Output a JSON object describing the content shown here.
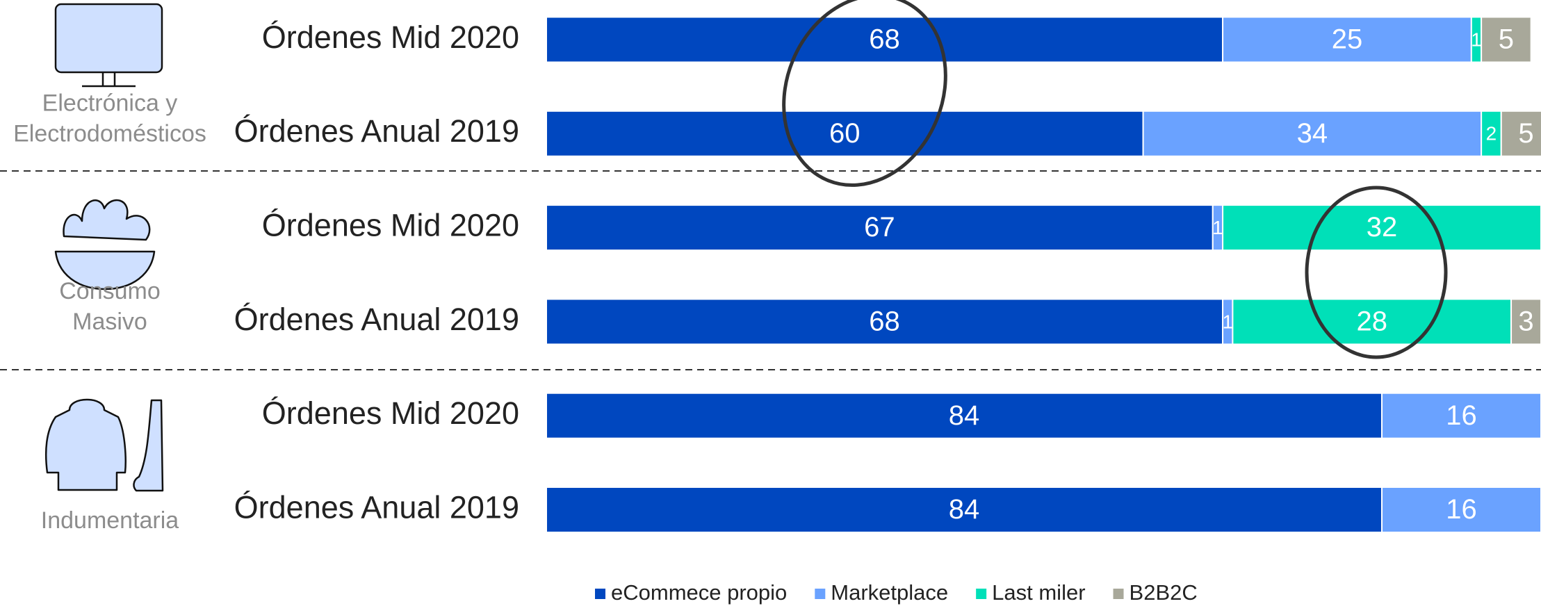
{
  "chart_data": {
    "type": "stacked-bar-horizontal",
    "categories": [
      "Órdenes Mid 2020",
      "Órdenes Anual 2019",
      "Órdenes Mid 2020",
      "Órdenes Anual 2019",
      "Órdenes Mid 2020",
      "Órdenes Anual 2019"
    ],
    "groups": [
      [
        "Electrónica y",
        "Electrodomésticos"
      ],
      [
        "Consumo",
        "Masivo"
      ],
      [
        "Indumentaria"
      ]
    ],
    "series": [
      {
        "name": "eCommece propio",
        "color": "#0047bf",
        "values": [
          68,
          60,
          67,
          68,
          84,
          84
        ]
      },
      {
        "name": "Marketplace",
        "color": "#6aa2ff",
        "values": [
          25,
          34,
          1,
          1,
          16,
          16
        ]
      },
      {
        "name": "Last miler",
        "color": "#00e0b8",
        "values": [
          1,
          2,
          32,
          28,
          null,
          null
        ]
      },
      {
        "name": "B2B2C",
        "color": "#a8a89a",
        "values": [
          5,
          5,
          null,
          3,
          null,
          null
        ]
      }
    ],
    "xlim": [
      0,
      100
    ],
    "legend": "bottom"
  }
}
